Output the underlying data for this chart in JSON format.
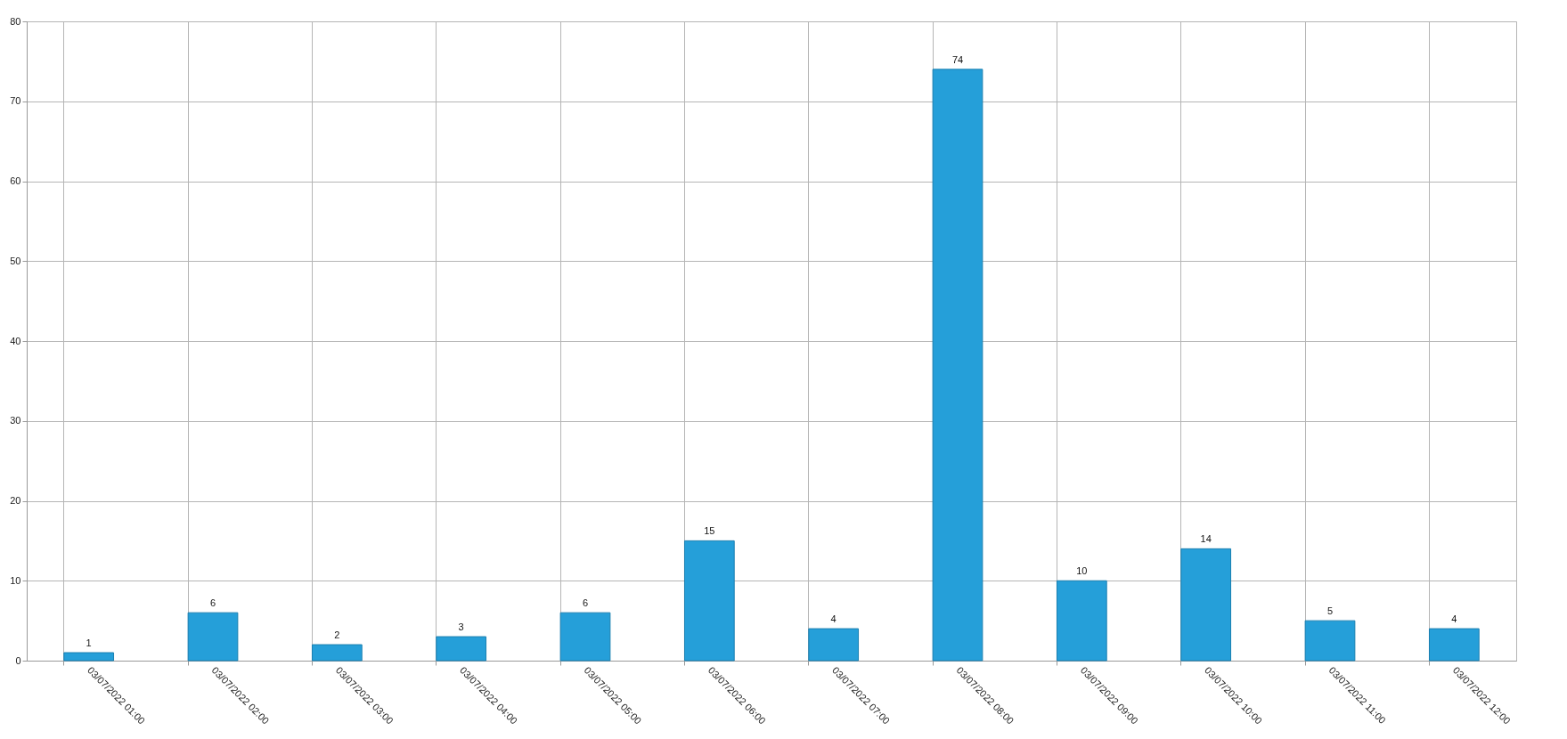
{
  "chart_data": {
    "type": "bar",
    "categories": [
      "03/07/2022 01:00",
      "03/07/2022 02:00",
      "03/07/2022 03:00",
      "03/07/2022 04:00",
      "03/07/2022 05:00",
      "03/07/2022 06:00",
      "03/07/2022 07:00",
      "03/07/2022 08:00",
      "03/07/2022 09:00",
      "03/07/2022 10:00",
      "03/07/2022 11:00",
      "03/07/2022 12:00"
    ],
    "values": [
      1,
      6,
      2,
      3,
      6,
      15,
      4,
      74,
      10,
      14,
      5,
      4
    ],
    "color": "#259fd9",
    "ylim": [
      0,
      80
    ],
    "yticks": [
      0,
      10,
      20,
      30,
      40,
      50,
      60,
      70,
      80
    ],
    "grid": true,
    "data_labels": true
  }
}
